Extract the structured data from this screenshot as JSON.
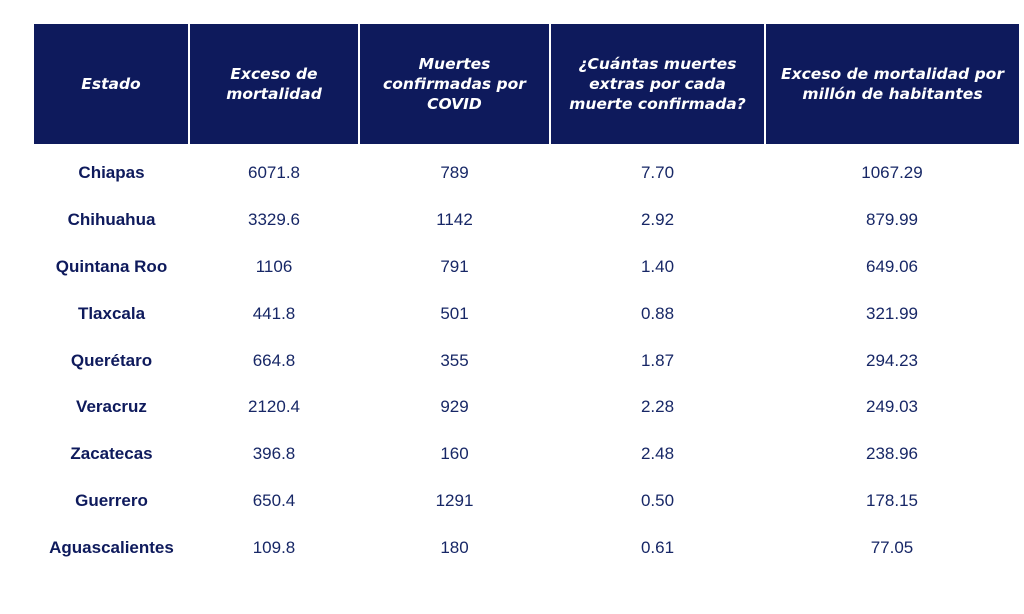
{
  "chart_data": {
    "type": "table",
    "columns": [
      "Estado",
      "Exceso de mortalidad",
      "Muertes confirmadas por COVID",
      "¿Cuántas muertes extras por cada muerte confirmada?",
      "Exceso de mortalidad por millón de habitantes"
    ],
    "rows": [
      [
        "Chiapas",
        "6071.8",
        "789",
        "7.70",
        "1067.29"
      ],
      [
        "Chihuahua",
        "3329.6",
        "1142",
        "2.92",
        "879.99"
      ],
      [
        "Quintana Roo",
        "1106",
        "791",
        "1.40",
        "649.06"
      ],
      [
        "Tlaxcala",
        "441.8",
        "501",
        "0.88",
        "321.99"
      ],
      [
        "Querétaro",
        "664.8",
        "355",
        "1.87",
        "294.23"
      ],
      [
        "Veracruz",
        "2120.4",
        "929",
        "2.28",
        "249.03"
      ],
      [
        "Zacatecas",
        "396.8",
        "160",
        "2.48",
        "238.96"
      ],
      [
        "Guerrero",
        "650.4",
        "1291",
        "0.50",
        "178.15"
      ],
      [
        "Aguascalientes",
        "109.8",
        "180",
        "0.61",
        "77.05"
      ]
    ]
  },
  "colors": {
    "header_bg": "#0e1a5c",
    "header_text": "#ffffff",
    "body_text": "#172766"
  }
}
